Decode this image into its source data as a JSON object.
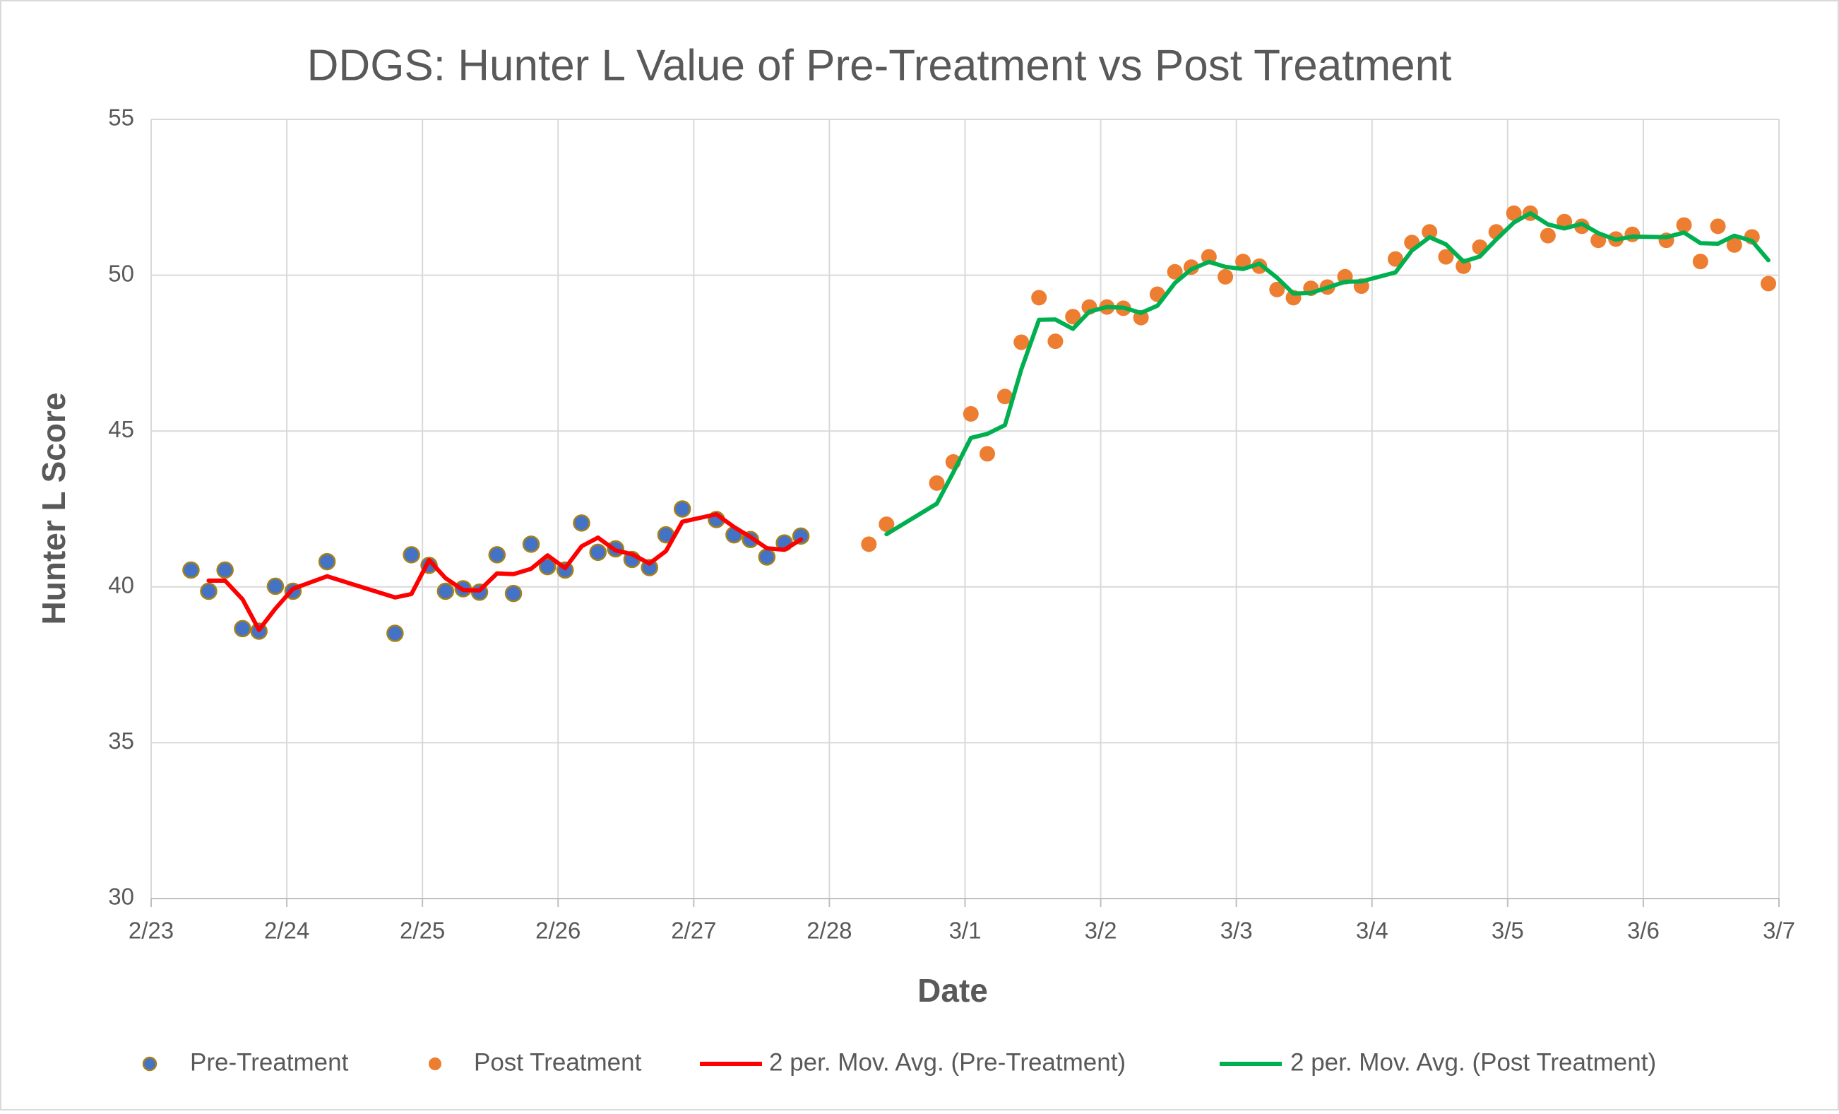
{
  "chart_data": {
    "type": "scatter",
    "title": "DDGS: Hunter L Value of Pre-Treatment vs Post Treatment",
    "x_label": "Date",
    "y_label": "Hunter L Score",
    "xlim": [
      0,
      12
    ],
    "xticks": [
      {
        "value": 0,
        "label": "2/23"
      },
      {
        "value": 1,
        "label": "2/24"
      },
      {
        "value": 2,
        "label": "2/25"
      },
      {
        "value": 3,
        "label": "2/26"
      },
      {
        "value": 4,
        "label": "2/27"
      },
      {
        "value": 5,
        "label": "2/28"
      },
      {
        "value": 6,
        "label": "3/1"
      },
      {
        "value": 7,
        "label": "3/2"
      },
      {
        "value": 8,
        "label": "3/3"
      },
      {
        "value": 9,
        "label": "3/4"
      },
      {
        "value": 10,
        "label": "3/5"
      },
      {
        "value": 11,
        "label": "3/6"
      },
      {
        "value": 12,
        "label": "3/7"
      }
    ],
    "ylim": [
      30,
      55
    ],
    "yticks": [
      30,
      35,
      40,
      45,
      50,
      55
    ],
    "grid": true,
    "legend": "bottom",
    "series": [
      {
        "name": "Pre-Treatment",
        "type": "scatter",
        "color": "#4472c4",
        "edge_color": "#a5811a",
        "x": [
          0.294,
          0.424,
          0.545,
          0.674,
          0.795,
          0.916,
          1.046,
          1.297,
          1.798,
          1.919,
          2.049,
          2.17,
          2.3,
          2.421,
          2.55,
          2.671,
          2.801,
          2.922,
          3.052,
          3.173,
          3.294,
          3.424,
          3.545,
          3.674,
          3.795,
          3.916,
          4.167,
          4.297,
          4.418,
          4.539,
          4.668,
          4.79
        ],
        "values": [
          40.54,
          39.86,
          40.54,
          38.66,
          38.58,
          40.02,
          39.86,
          40.81,
          38.51,
          41.03,
          40.69,
          39.86,
          39.94,
          39.83,
          41.03,
          39.79,
          41.37,
          40.65,
          40.54,
          42.05,
          41.11,
          41.22,
          40.88,
          40.62,
          41.67,
          42.5,
          42.16,
          41.67,
          41.52,
          40.96,
          41.41,
          41.63
        ]
      },
      {
        "name": "Post Treatment",
        "type": "scatter",
        "color": "#ed7d31",
        "x": [
          5.291,
          5.421,
          5.792,
          5.913,
          6.043,
          6.164,
          6.294,
          6.415,
          6.545,
          6.666,
          6.795,
          6.916,
          7.046,
          7.167,
          7.297,
          7.418,
          7.547,
          7.668,
          7.798,
          7.919,
          8.049,
          8.17,
          8.3,
          8.421,
          8.55,
          8.671,
          8.801,
          8.922,
          9.173,
          9.294,
          9.424,
          9.545,
          9.674,
          9.795,
          9.916,
          10.046,
          10.167,
          10.297,
          10.418,
          10.547,
          10.668,
          10.798,
          10.919,
          11.17,
          11.3,
          11.421,
          11.55,
          11.671,
          11.801,
          11.922
        ],
        "values": [
          41.37,
          42.01,
          43.33,
          44.01,
          45.55,
          44.27,
          46.11,
          47.85,
          49.28,
          47.88,
          48.67,
          48.98,
          48.98,
          48.94,
          48.64,
          49.39,
          50.11,
          50.26,
          50.59,
          49.95,
          50.44,
          50.29,
          49.54,
          49.28,
          49.58,
          49.62,
          49.95,
          49.65,
          50.52,
          51.05,
          51.39,
          50.59,
          50.29,
          50.9,
          51.39,
          51.99,
          51.99,
          51.27,
          51.72,
          51.57,
          51.12,
          51.16,
          51.31,
          51.12,
          51.61,
          50.44,
          51.57,
          50.97,
          51.23,
          49.73
        ]
      },
      {
        "name": "2 per. Mov. Avg. (Pre-Treatment)",
        "type": "line",
        "color": "#ff0000",
        "x": [
          0.294,
          0.424,
          0.545,
          0.674,
          0.795,
          0.916,
          1.046,
          1.297,
          1.798,
          1.919,
          2.049,
          2.17,
          2.3,
          2.421,
          2.55,
          2.671,
          2.801,
          2.922,
          3.052,
          3.173,
          3.294,
          3.424,
          3.545,
          3.674,
          3.795,
          3.916,
          4.167,
          4.297,
          4.418,
          4.539,
          4.668,
          4.79
        ],
        "values": [
          null,
          40.2,
          40.2,
          39.6,
          38.62,
          39.3,
          39.94,
          40.34,
          39.66,
          39.77,
          40.86,
          40.28,
          39.9,
          39.89,
          40.43,
          40.41,
          40.58,
          41.01,
          40.6,
          41.3,
          41.58,
          41.17,
          41.05,
          40.75,
          41.15,
          42.09,
          42.33,
          41.92,
          41.6,
          41.24,
          41.19,
          41.52
        ]
      },
      {
        "name": "2 per. Mov. Avg. (Post Treatment)",
        "type": "line",
        "color": "#00b050",
        "x": [
          5.291,
          5.421,
          5.792,
          5.913,
          6.043,
          6.164,
          6.294,
          6.415,
          6.545,
          6.666,
          6.795,
          6.916,
          7.046,
          7.167,
          7.297,
          7.418,
          7.547,
          7.668,
          7.798,
          7.919,
          8.049,
          8.17,
          8.3,
          8.421,
          8.55,
          8.671,
          8.801,
          8.922,
          9.173,
          9.294,
          9.424,
          9.545,
          9.674,
          9.795,
          9.916,
          10.046,
          10.167,
          10.297,
          10.418,
          10.547,
          10.668,
          10.798,
          10.919,
          11.17,
          11.3,
          11.421,
          11.55,
          11.671,
          11.801,
          11.922
        ],
        "values": [
          null,
          41.69,
          42.67,
          43.67,
          44.78,
          44.91,
          45.19,
          46.98,
          48.57,
          48.58,
          48.28,
          48.83,
          48.98,
          48.96,
          48.79,
          49.02,
          49.75,
          50.19,
          50.43,
          50.27,
          50.2,
          50.37,
          49.92,
          49.41,
          49.43,
          49.6,
          49.79,
          49.8,
          50.09,
          50.79,
          51.22,
          50.99,
          50.44,
          50.6,
          51.15,
          51.69,
          51.99,
          51.63,
          51.5,
          51.65,
          51.35,
          51.14,
          51.24,
          51.22,
          51.37,
          51.03,
          51.01,
          51.27,
          51.1,
          50.48
        ]
      }
    ]
  }
}
